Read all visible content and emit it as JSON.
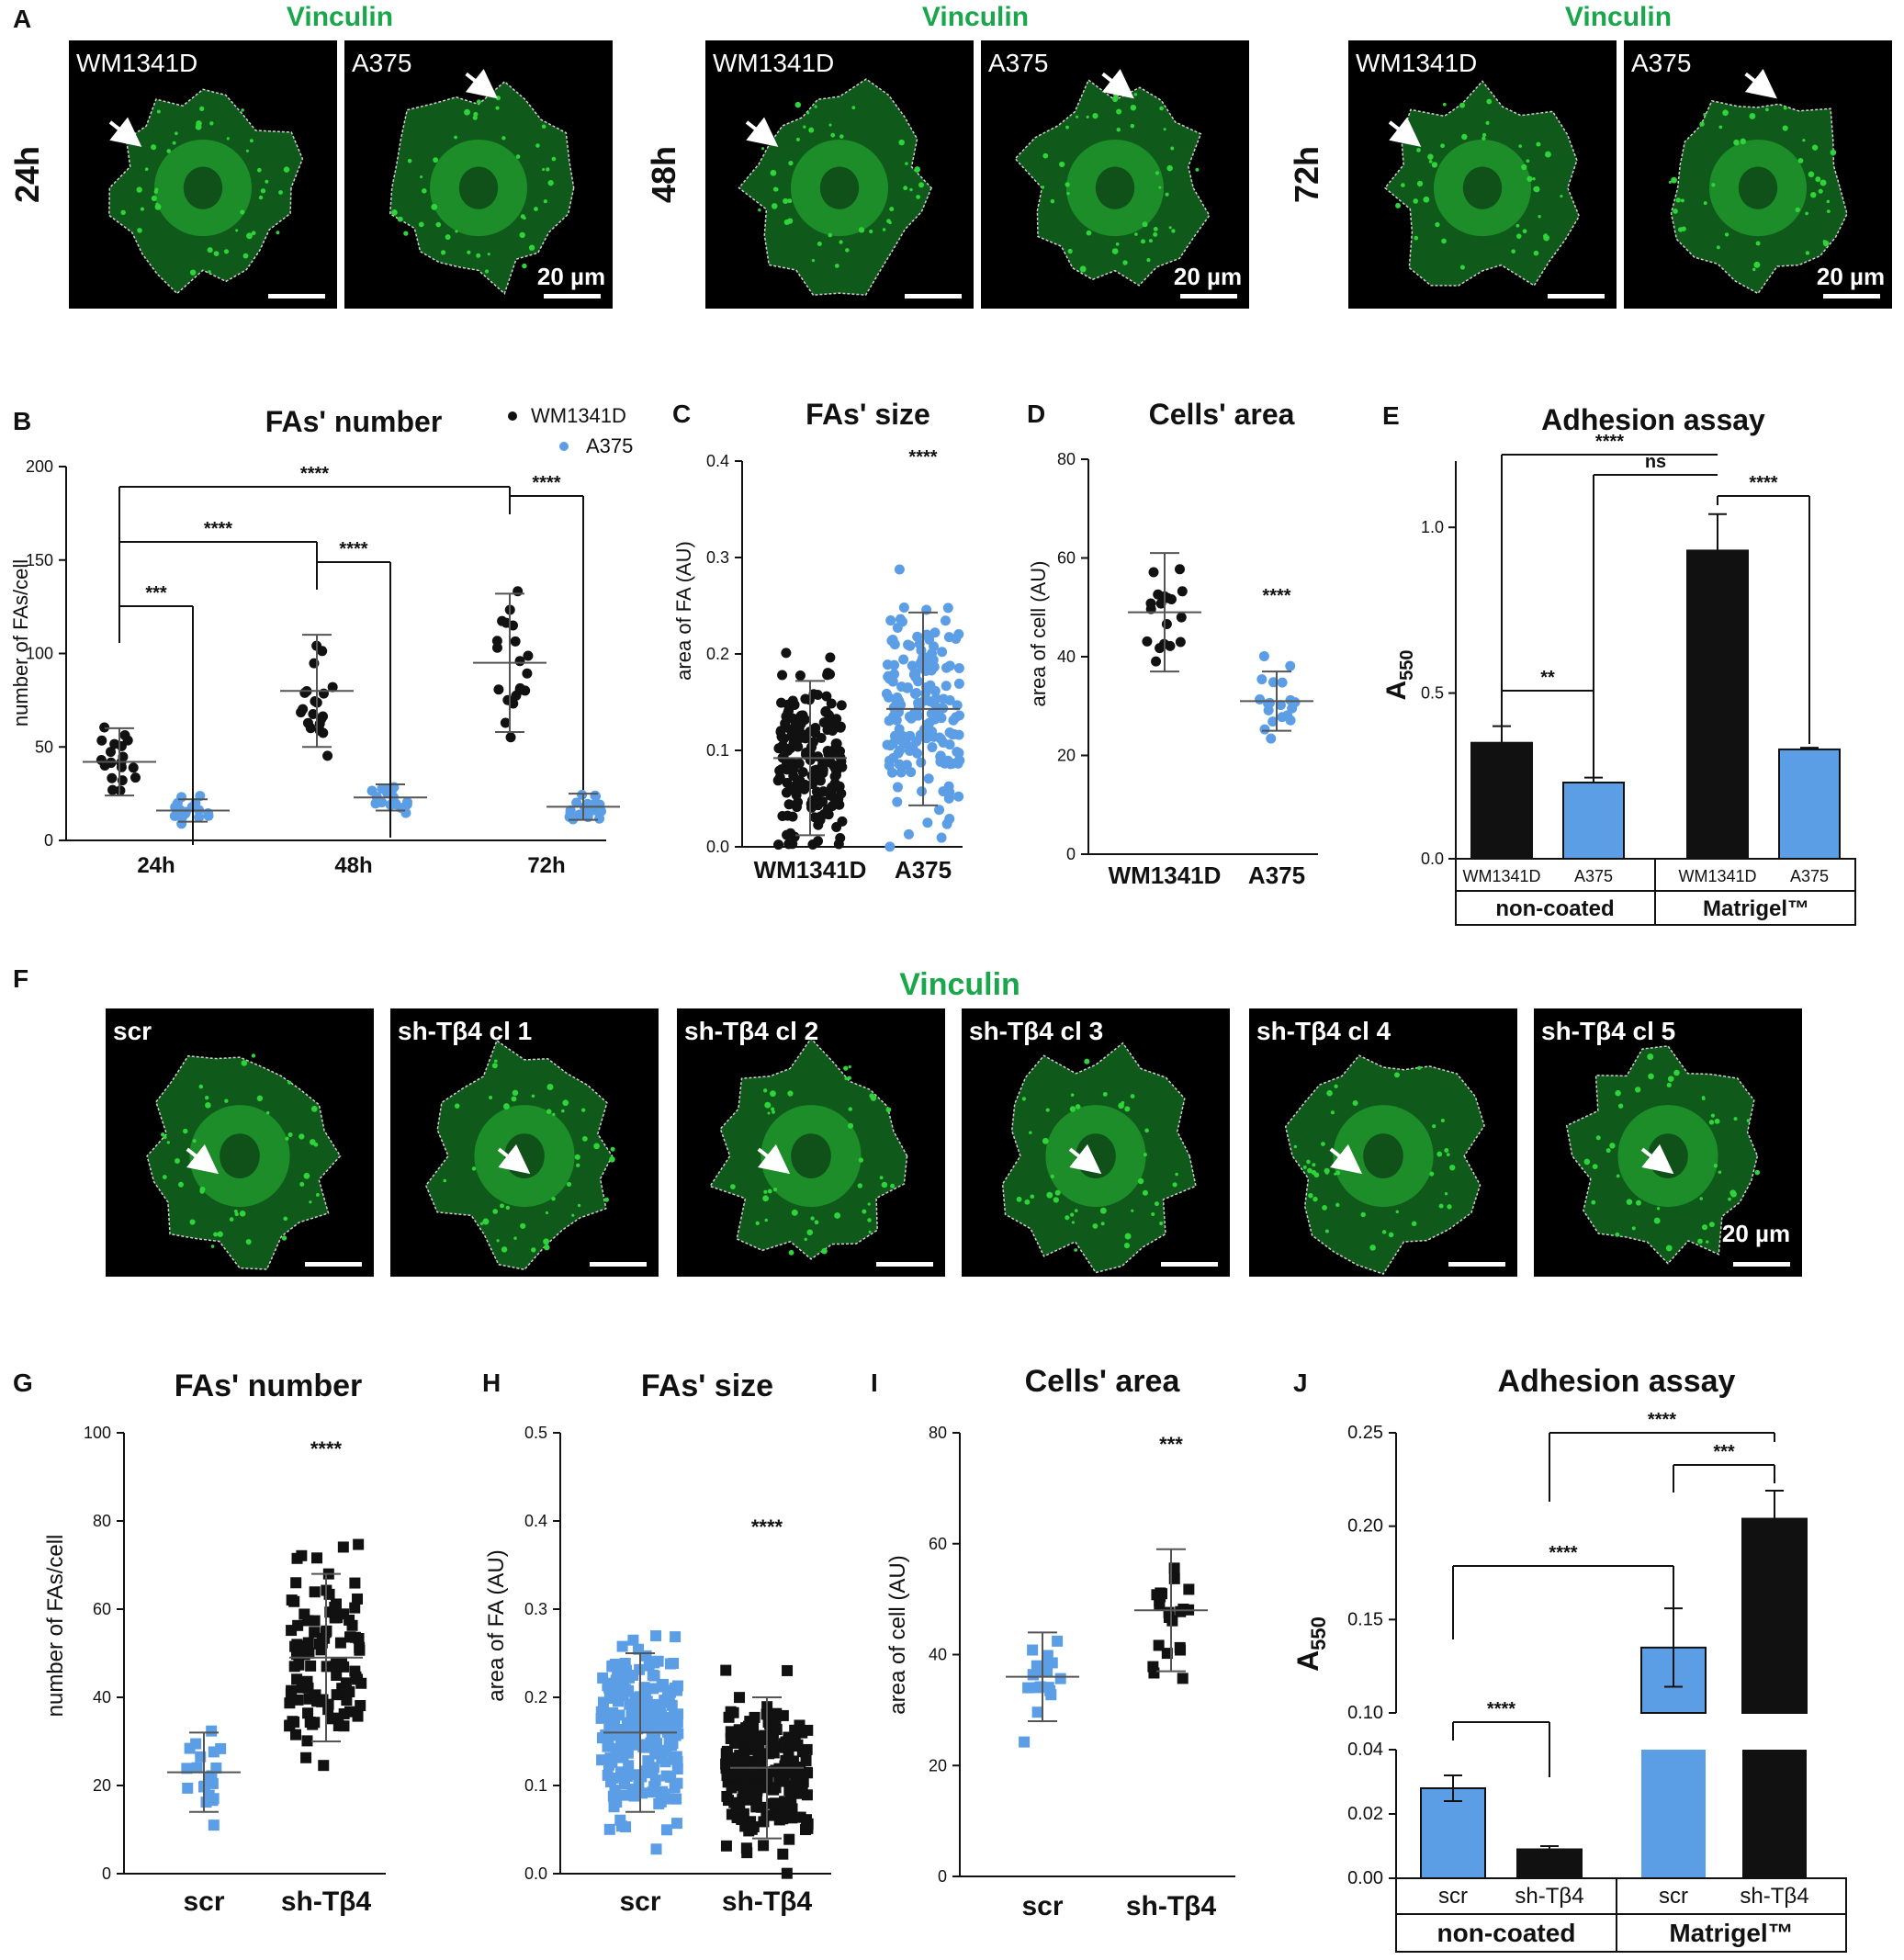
{
  "colors": {
    "green": "#1aa64a",
    "black": "#111111",
    "blue": "#5b9ee6",
    "micro_bg": "#000000",
    "micro_green": "#2fd33a"
  },
  "panelA": {
    "letter": "A",
    "title": "Vinculin",
    "timepoints": [
      "24h",
      "48h",
      "72h"
    ],
    "cell_lines": [
      "WM1341D",
      "A375"
    ],
    "scalebar": "20 µm"
  },
  "panelB": {
    "letter": "B",
    "title": "FAs' number",
    "ylabel": "number of FAs/cell",
    "legend": [
      "WM1341D",
      "A375"
    ],
    "categories": [
      "24h",
      "48h",
      "72h"
    ],
    "yticks": [
      "0",
      "50",
      "100",
      "150",
      "200"
    ],
    "sig": [
      "***",
      "****",
      "****",
      "****",
      "****"
    ]
  },
  "panelC": {
    "letter": "C",
    "title": "FAs' size",
    "ylabel": "area of FA (AU)",
    "categories": [
      "WM1341D",
      "A375"
    ],
    "yticks": [
      "0.0",
      "0.1",
      "0.2",
      "0.3",
      "0.4"
    ],
    "sig": "****"
  },
  "panelD": {
    "letter": "D",
    "title": "Cells' area",
    "ylabel": "area of cell (AU)",
    "categories": [
      "WM1341D",
      "A375"
    ],
    "yticks": [
      "0",
      "20",
      "40",
      "60",
      "80"
    ],
    "sig": "****"
  },
  "panelE": {
    "letter": "E",
    "title": "Adhesion assay",
    "ylabel": "A550",
    "ylabel_main": "A",
    "ylabel_sub": "550",
    "bars": [
      "WM1341D",
      "A375",
      "WM1341D",
      "A375"
    ],
    "groups": [
      "non-coated",
      "Matrigel™"
    ],
    "yticks": [
      "0.0",
      "0.5",
      "1.0"
    ],
    "sig": [
      "****",
      "ns",
      "****",
      "**"
    ]
  },
  "panelF": {
    "letter": "F",
    "title": "Vinculin",
    "clones": [
      "scr",
      "sh-Tβ4 cl 1",
      "sh-Tβ4 cl 2",
      "sh-Tβ4 cl 3",
      "sh-Tβ4 cl 4",
      "sh-Tβ4 cl 5"
    ],
    "scalebar": "20 µm"
  },
  "panelG": {
    "letter": "G",
    "title": "FAs' number",
    "ylabel": "number of FAs/cell",
    "categories": [
      "scr",
      "sh-Tβ4"
    ],
    "yticks": [
      "0",
      "20",
      "40",
      "60",
      "80",
      "100"
    ],
    "sig": "****"
  },
  "panelH": {
    "letter": "H",
    "title": "FAs' size",
    "ylabel": "area of FA (AU)",
    "categories": [
      "scr",
      "sh-Tβ4"
    ],
    "yticks": [
      "0.0",
      "0.1",
      "0.2",
      "0.3",
      "0.4",
      "0.5"
    ],
    "sig": "****"
  },
  "panelI": {
    "letter": "I",
    "title": "Cells' area",
    "ylabel": "area of cell (AU)",
    "categories": [
      "scr",
      "sh-Tβ4"
    ],
    "yticks": [
      "0",
      "20",
      "40",
      "60",
      "80"
    ],
    "sig": "***"
  },
  "panelJ": {
    "letter": "J",
    "title": "Adhesion assay",
    "ylabel": "A550",
    "ylabel_main": "A",
    "ylabel_sub": "550",
    "bars": [
      "scr",
      "sh-Tβ4",
      "scr",
      "sh-Tβ4"
    ],
    "groups": [
      "non-coated",
      "Matrigel™"
    ],
    "yticks_top": [
      "0.10",
      "0.15",
      "0.20",
      "0.25"
    ],
    "yticks_bottom": [
      "0.00",
      "0.02",
      "0.04"
    ],
    "sig": [
      "****",
      "***",
      "****",
      "****"
    ]
  },
  "chart_data": [
    {
      "panel": "B",
      "type": "scatter",
      "title": "FAs' number",
      "ylabel": "number of FAs/cell",
      "categories": [
        "24h",
        "48h",
        "72h"
      ],
      "ylim": [
        0,
        200
      ],
      "series": [
        {
          "name": "WM1341D",
          "mean": [
            42,
            80,
            95
          ],
          "sd": [
            18,
            30,
            37
          ]
        },
        {
          "name": "A375",
          "mean": [
            16,
            23,
            18
          ],
          "sd": [
            6,
            7,
            7
          ]
        }
      ]
    },
    {
      "panel": "C",
      "type": "scatter",
      "title": "FAs' size",
      "ylabel": "area of FA (AU)",
      "categories": [
        "WM1341D",
        "A375"
      ],
      "ylim": [
        0,
        0.4
      ],
      "mean": [
        0.092,
        0.143
      ],
      "sd": [
        0.08,
        0.1
      ]
    },
    {
      "panel": "D",
      "type": "scatter",
      "title": "Cells' area",
      "ylabel": "area of cell (AU)",
      "categories": [
        "WM1341D",
        "A375"
      ],
      "ylim": [
        0,
        80
      ],
      "mean": [
        49,
        31
      ],
      "sd": [
        12,
        6
      ]
    },
    {
      "panel": "E",
      "type": "bar",
      "title": "Adhesion assay",
      "ylabel": "A550",
      "categories": [
        "WM1341D",
        "A375",
        "WM1341D",
        "A375"
      ],
      "groups": [
        "non-coated",
        "non-coated",
        "Matrigel™",
        "Matrigel™"
      ],
      "values": [
        0.35,
        0.23,
        0.93,
        0.33
      ],
      "errors": [
        0.05,
        0.015,
        0.11,
        0.005
      ],
      "ylim": [
        0,
        1.2
      ]
    },
    {
      "panel": "G",
      "type": "scatter",
      "title": "FAs' number",
      "ylabel": "number of FAs/cell",
      "categories": [
        "scr",
        "sh-Tβ4"
      ],
      "ylim": [
        0,
        100
      ],
      "mean": [
        23,
        49
      ],
      "sd": [
        9,
        19
      ]
    },
    {
      "panel": "H",
      "type": "scatter",
      "title": "FAs' size",
      "ylabel": "area of FA (AU)",
      "categories": [
        "scr",
        "sh-Tβ4"
      ],
      "ylim": [
        0,
        0.5
      ],
      "mean": [
        0.16,
        0.12
      ],
      "sd": [
        0.09,
        0.08
      ]
    },
    {
      "panel": "I",
      "type": "scatter",
      "title": "Cells' area",
      "ylabel": "area of cell (AU)",
      "categories": [
        "scr",
        "sh-Tβ4"
      ],
      "ylim": [
        0,
        80
      ],
      "mean": [
        36,
        48
      ],
      "sd": [
        8,
        11
      ]
    },
    {
      "panel": "J",
      "type": "bar",
      "title": "Adhesion assay",
      "ylabel": "A550",
      "categories": [
        "scr",
        "sh-Tβ4",
        "scr",
        "sh-Tβ4"
      ],
      "groups": [
        "non-coated",
        "non-coated",
        "Matrigel™",
        "Matrigel™"
      ],
      "values": [
        0.028,
        0.009,
        0.135,
        0.204
      ],
      "errors": [
        0.004,
        0.001,
        0.021,
        0.015
      ],
      "ylim": [
        0,
        0.25
      ]
    }
  ]
}
